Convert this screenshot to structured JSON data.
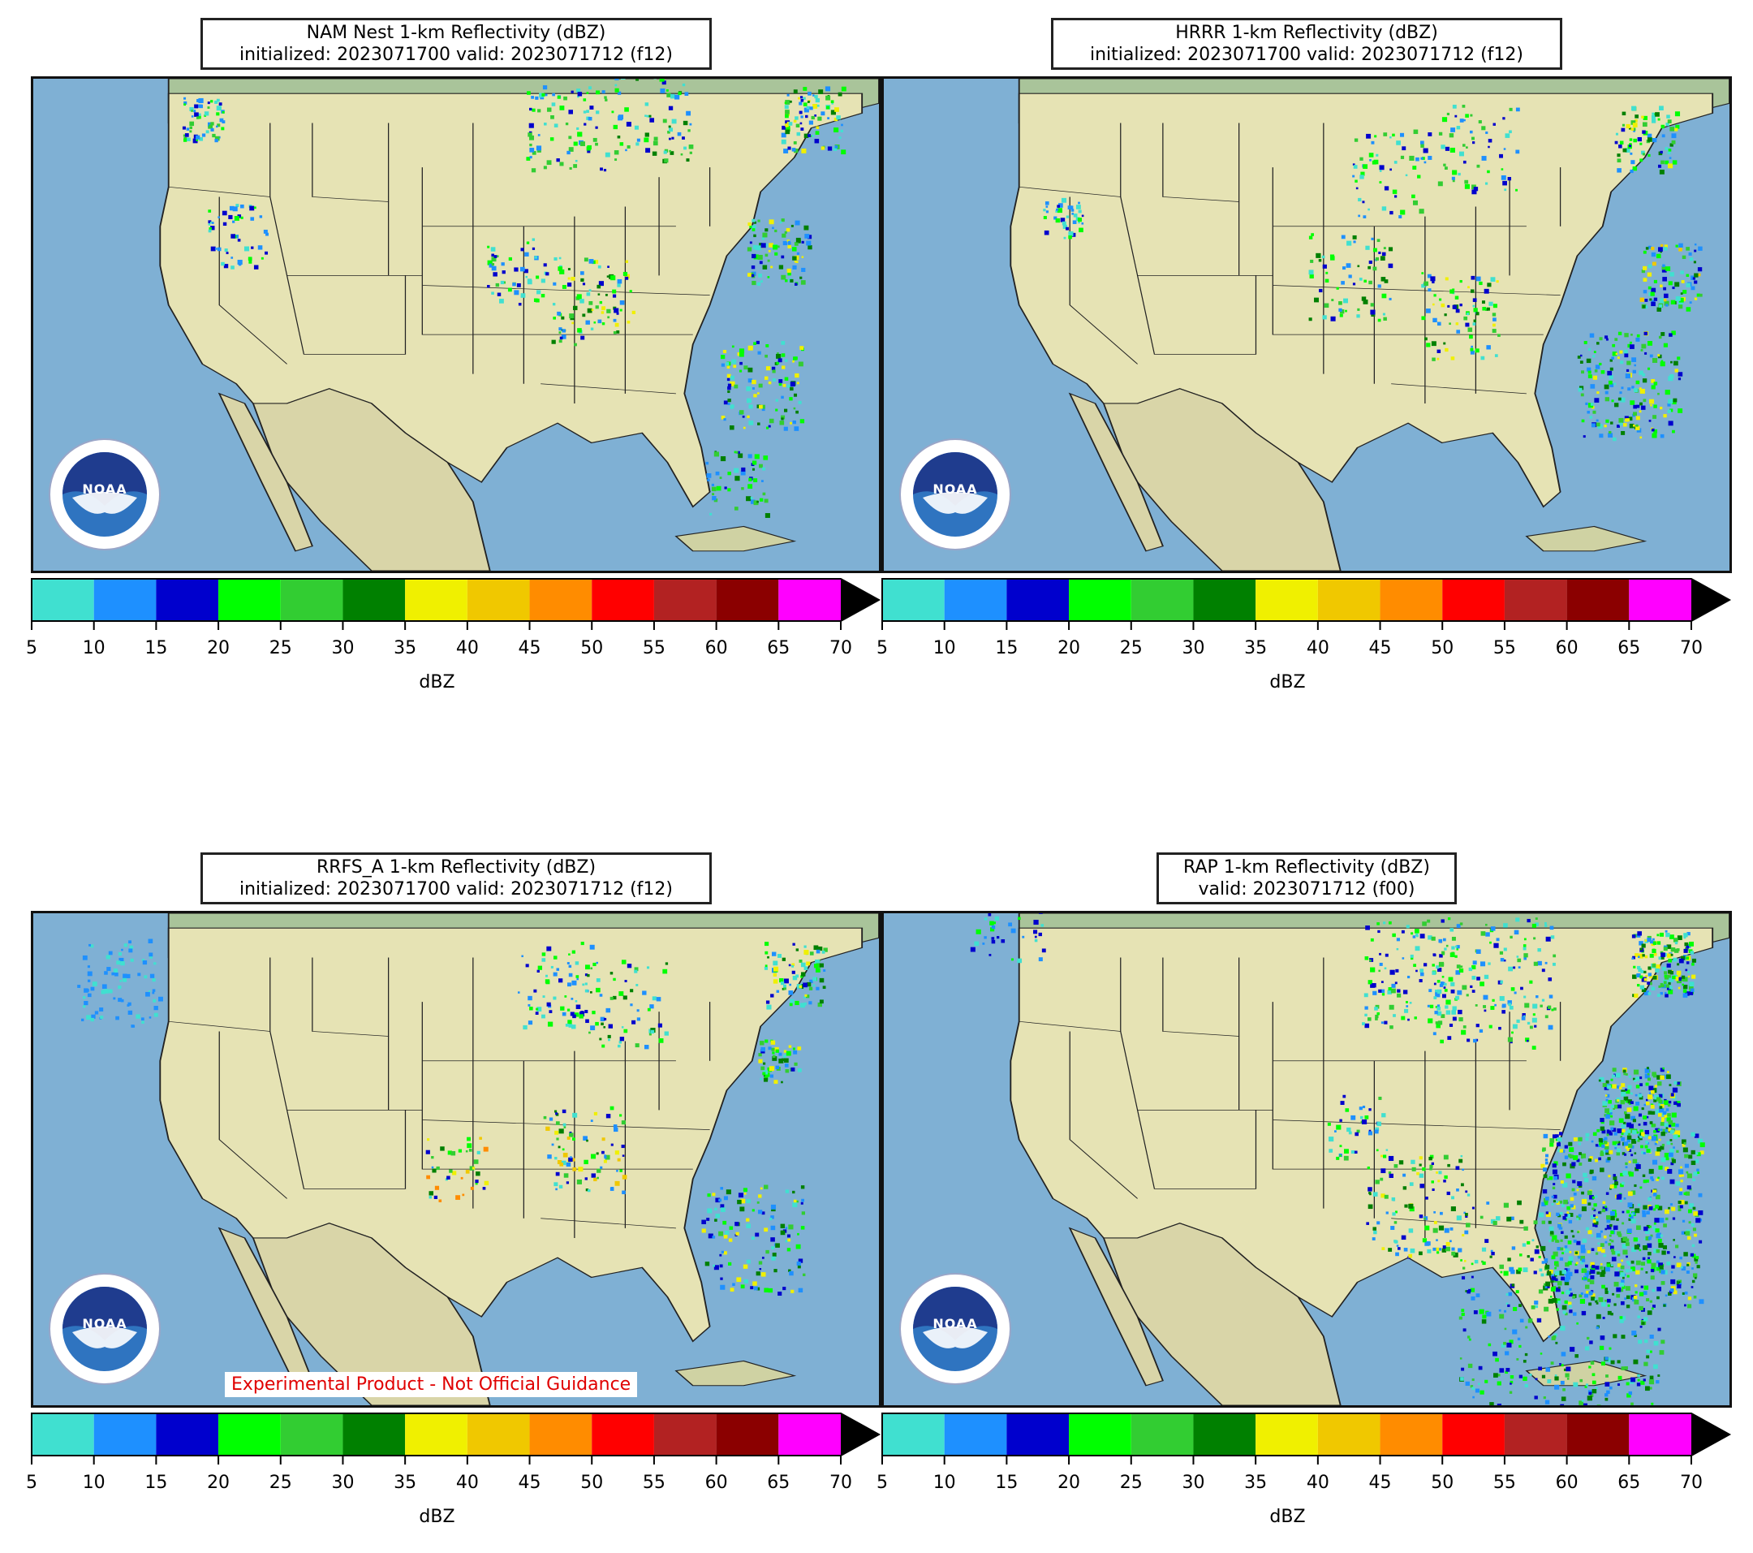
{
  "panels": [
    {
      "id": "nam",
      "title_line1": "NAM Nest 1-km Reflectivity (dBZ)",
      "title_line2": "initialized: 2023071700 valid: 2023071712 (f12)",
      "logo_text": "NOAA",
      "experimental": ""
    },
    {
      "id": "hrrr",
      "title_line1": "HRRR 1-km Reflectivity (dBZ)",
      "title_line2": "initialized: 2023071700 valid: 2023071712 (f12)",
      "logo_text": "NOAA",
      "experimental": ""
    },
    {
      "id": "rrfs",
      "title_line1": "RRFS_A 1-km Reflectivity (dBZ)",
      "title_line2": "initialized: 2023071700 valid: 2023071712 (f12)",
      "logo_text": "NOAA",
      "experimental": "Experimental Product - Not Official Guidance"
    },
    {
      "id": "rap",
      "title_line1": "RAP 1-km Reflectivity (dBZ)",
      "title_line2": "valid: 2023071712 (f00)",
      "logo_text": "NOAA",
      "experimental": ""
    }
  ],
  "colorbar": {
    "unit": "dBZ",
    "ticks": [
      "5",
      "10",
      "15",
      "20",
      "25",
      "30",
      "35",
      "40",
      "45",
      "50",
      "55",
      "60",
      "65",
      "70"
    ],
    "colors": [
      "#40e0d0",
      "#1e90ff",
      "#0000cd",
      "#00ff00",
      "#32cd32",
      "#008000",
      "#f0f000",
      "#f0c800",
      "#ff8c00",
      "#ff0000",
      "#b22222",
      "#8b0000",
      "#ff00ff"
    ],
    "extend_color": "#000000"
  },
  "map_colors": {
    "ocean": "#7fb0d4",
    "land": "#e6e3b4",
    "border": "#222222"
  }
}
